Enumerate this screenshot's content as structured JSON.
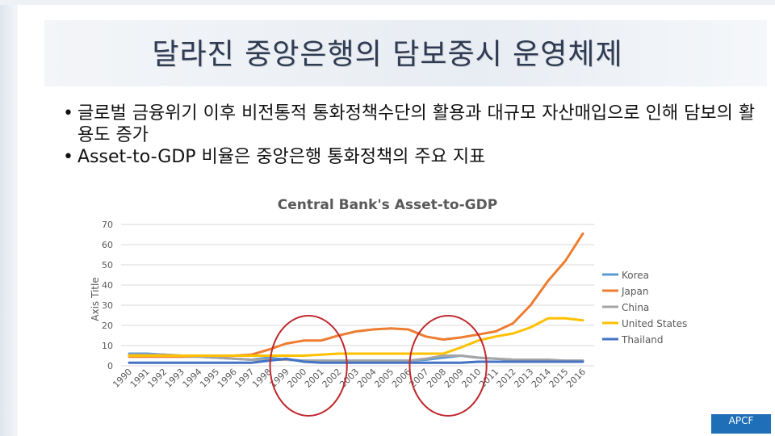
{
  "slide": {
    "title": "달라진 중앙은행의 담보중시 운영체제",
    "bullets": [
      "글로벌 금융위기 이후 비전통적 통화정책수단의 활용과 대규모 자산매입으로 인해 담보의 활용도 증가",
      "Asset-to-GDP 비율은 중앙은행 통화정책의 주요 지표"
    ],
    "bullet_marker": "•",
    "logo_text": "APCF"
  },
  "colors": {
    "title": "#2f3b52",
    "circle": "#c0282d"
  },
  "chart_data": {
    "type": "line",
    "title": "Central Bank's Asset-to-GDP",
    "xlabel": "",
    "ylabel": "Axis Title",
    "ylim": [
      0,
      70
    ],
    "yticks": [
      0,
      10,
      20,
      30,
      40,
      50,
      60,
      70
    ],
    "grid": true,
    "legend_position": "right",
    "categories": [
      "1990",
      "1991",
      "1992",
      "1993",
      "1994",
      "1995",
      "1996",
      "1997",
      "1998",
      "1999",
      "2000",
      "2001",
      "2002",
      "2003",
      "2004",
      "2005",
      "2006",
      "2007",
      "2008",
      "2009",
      "2010",
      "2011",
      "2012",
      "2013",
      "2014",
      "2015",
      "2016"
    ],
    "series": [
      {
        "name": "Korea",
        "color": "#5b9bd5",
        "values": [
          6,
          6,
          5.5,
          5,
          4.5,
          4,
          3.5,
          3,
          4,
          3,
          2.5,
          2.5,
          2.5,
          2.5,
          2.5,
          2.5,
          2.5,
          3,
          4,
          5,
          4,
          3.5,
          3,
          2.5,
          2.5,
          2.5,
          2.5
        ]
      },
      {
        "name": "Japan",
        "color": "#ed7d31",
        "values": [
          4.5,
          4.5,
          4.5,
          4.5,
          4.5,
          4.5,
          5,
          5.5,
          8,
          11,
          12.5,
          12.5,
          15,
          17,
          18,
          18.5,
          18,
          14.5,
          13,
          14,
          15.5,
          17,
          21,
          30,
          42,
          52,
          65.5
        ]
      },
      {
        "name": "China",
        "color": "#a5a5a5",
        "values": [
          5.5,
          5.5,
          5.5,
          5,
          4.5,
          4,
          3.5,
          3,
          3,
          3,
          2.5,
          2.5,
          2.5,
          2.5,
          2.5,
          2.5,
          2.5,
          3.5,
          5,
          5,
          4,
          3.5,
          3,
          3,
          3,
          2.5,
          2.5
        ]
      },
      {
        "name": "United States",
        "color": "#ffc000",
        "values": [
          5,
          5,
          5,
          5,
          5,
          5,
          5,
          5,
          5,
          5,
          5,
          5.5,
          6,
          6,
          6,
          6,
          6,
          6,
          6,
          9,
          12.5,
          14.5,
          16,
          19,
          23.5,
          23.5,
          22.5
        ]
      },
      {
        "name": "Thailand",
        "color": "#4472c4",
        "values": [
          1.5,
          1.5,
          1.5,
          1.5,
          1.5,
          1.5,
          1.5,
          1.5,
          2.5,
          3.5,
          2,
          1.5,
          1.5,
          1.5,
          1.5,
          1.5,
          1.5,
          1.5,
          1.5,
          1.5,
          2,
          2,
          2,
          2,
          2,
          2,
          2
        ]
      }
    ],
    "highlight_ranges": [
      [
        "1999",
        "2001"
      ],
      [
        "2007",
        "2009"
      ]
    ]
  }
}
